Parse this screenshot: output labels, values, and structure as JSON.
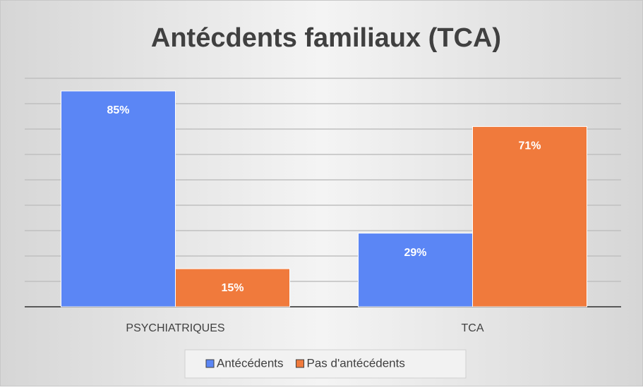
{
  "chart_data": {
    "type": "bar",
    "title": "Antécdents familiaux (TCA)",
    "categories": [
      "PSYCHIATRIQUES",
      "TCA"
    ],
    "series": [
      {
        "name": "Antécédents",
        "color": "#5b86f5",
        "values": [
          85,
          29
        ],
        "value_labels": [
          "85%",
          "29%"
        ]
      },
      {
        "name": "Pas d'antécédents",
        "color": "#f07a3c",
        "values": [
          15,
          71
        ],
        "value_labels": [
          "15%",
          "71%"
        ]
      }
    ],
    "ylim": [
      0,
      90
    ],
    "yticks": [
      0,
      10,
      20,
      30,
      40,
      50,
      60,
      70,
      80,
      90
    ],
    "grid": true,
    "legend": "bottom"
  }
}
